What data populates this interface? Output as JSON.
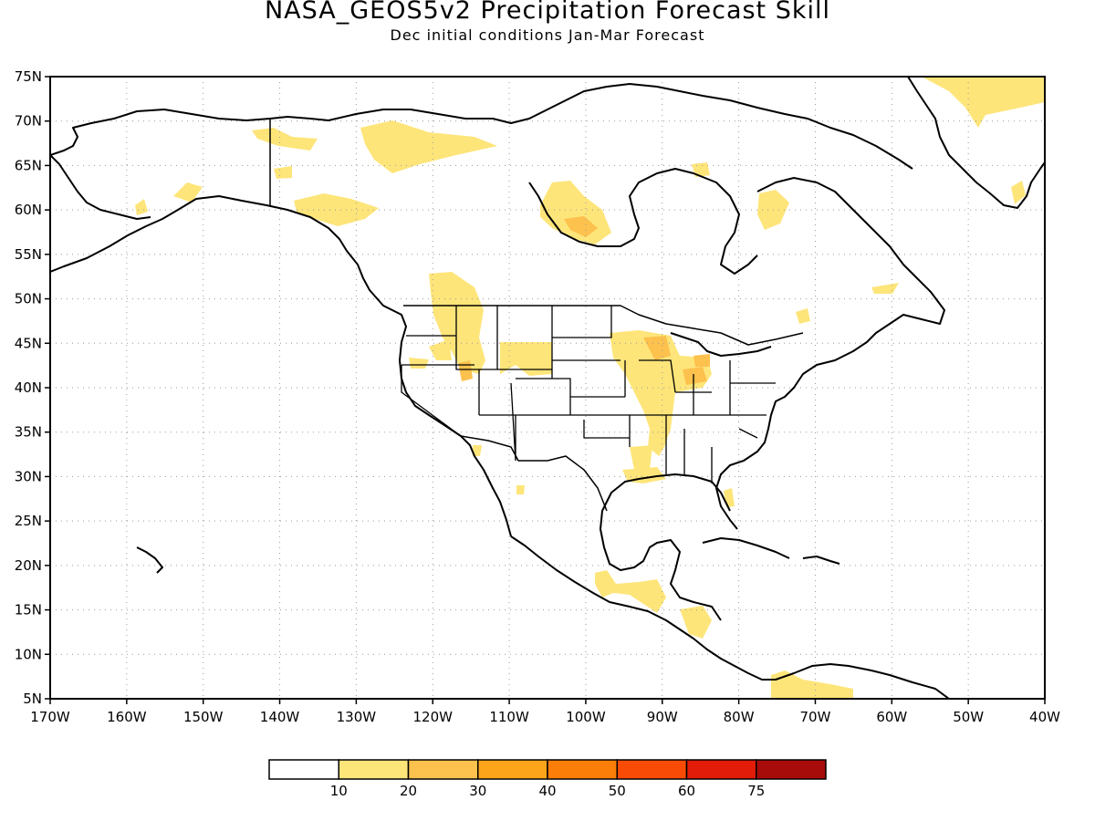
{
  "header": {
    "title": "NASA_GEOS5v2 Precipitation Forecast Skill",
    "subtitle": "Dec initial conditions  Jan-Mar Forecast"
  },
  "axes": {
    "lat_labels": [
      "75N",
      "70N",
      "65N",
      "60N",
      "55N",
      "50N",
      "45N",
      "40N",
      "35N",
      "30N",
      "25N",
      "20N",
      "15N",
      "10N",
      "5N"
    ],
    "lon_labels": [
      "170W",
      "160W",
      "150W",
      "140W",
      "130W",
      "120W",
      "110W",
      "100W",
      "90W",
      "80W",
      "70W",
      "60W",
      "50W",
      "40W"
    ],
    "lat_range": [
      5,
      75
    ],
    "lon_range": [
      -170,
      -40
    ],
    "grid": "dotted"
  },
  "colorbar": {
    "labels": [
      "10",
      "20",
      "30",
      "40",
      "50",
      "60",
      "75"
    ],
    "colors": [
      "#ffffff",
      "#fee57a",
      "#fdc14d",
      "#fca51a",
      "#fb7e08",
      "#f84c06",
      "#e21c08",
      "#a80c0a"
    ]
  },
  "legend_colors": {
    "land_line": "#000000",
    "skill_10_20": "#fee57a",
    "skill_20_30": "#fdc14d"
  }
}
